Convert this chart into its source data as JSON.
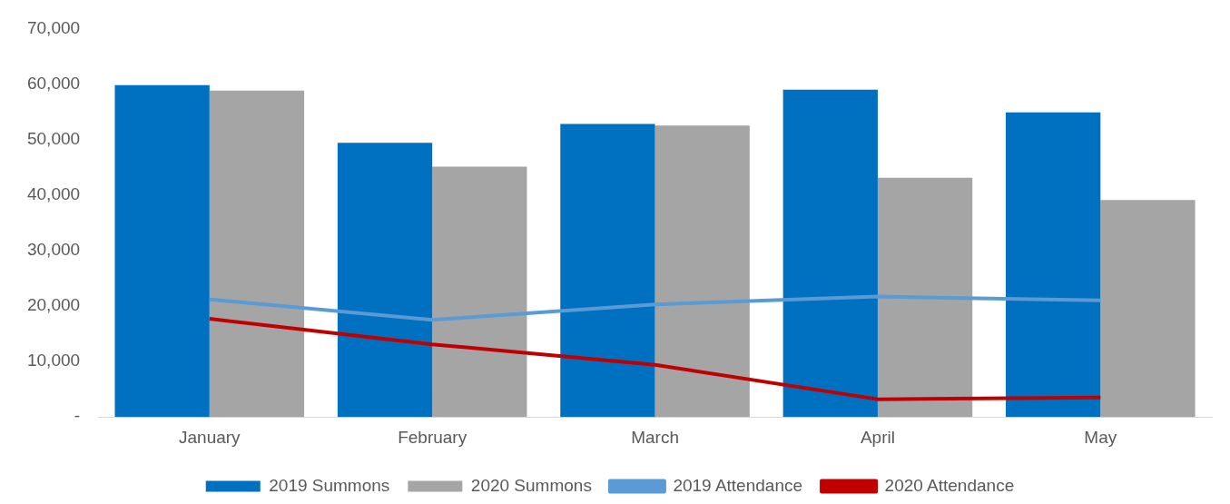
{
  "chart_data": {
    "type": "bar",
    "categories": [
      "January",
      "February",
      "March",
      "April",
      "May"
    ],
    "series": [
      {
        "name": "2019 Summons",
        "color": "#0070c0",
        "values": [
          59800,
          49400,
          52800,
          59000,
          54900
        ]
      },
      {
        "name": "2020 Summons",
        "color": "#a5a5a5",
        "values": [
          58800,
          45100,
          52500,
          43100,
          39100
        ]
      },
      {
        "name": "2019 Attendance",
        "type": "line",
        "color": "#5b9bd5",
        "values": [
          21200,
          17500,
          20300,
          21700,
          21000
        ]
      },
      {
        "name": "2020 Attendance",
        "type": "line",
        "color": "#c00000",
        "values": [
          17700,
          13100,
          9400,
          3200,
          3500
        ]
      }
    ],
    "ylim": [
      0,
      70000
    ],
    "yticks": [
      {
        "value": 0,
        "label": "-"
      },
      {
        "value": 10000,
        "label": "10,000"
      },
      {
        "value": 20000,
        "label": "20,000"
      },
      {
        "value": 30000,
        "label": "30,000"
      },
      {
        "value": 40000,
        "label": "40,000"
      },
      {
        "value": 50000,
        "label": "50,000"
      },
      {
        "value": 60000,
        "label": "60,000"
      },
      {
        "value": 70000,
        "label": "70,000"
      }
    ],
    "grid": false,
    "legend": "bottom",
    "marker": "none",
    "line_style": "solid"
  }
}
